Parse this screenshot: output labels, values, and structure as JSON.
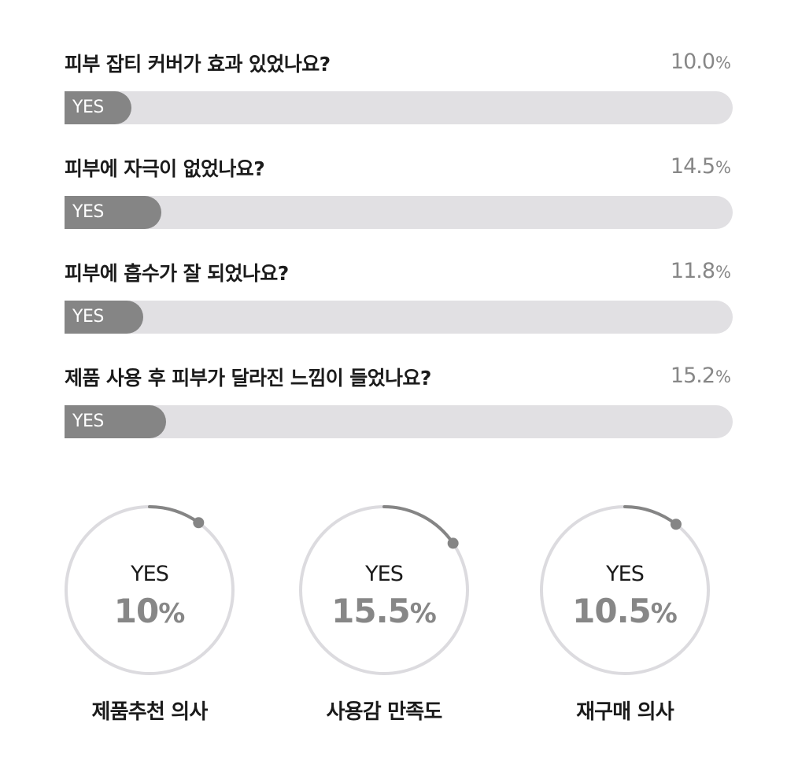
{
  "chart_data": [
    {
      "type": "bar",
      "orientation": "horizontal",
      "categories": [
        "피부 잡티 커버가 효과 있었나요?",
        "피부에 자극이 없었나요?",
        "피부에 흡수가 잘 되었나요?",
        "제품 사용 후 피부가 달라진 느낌이 들었나요?"
      ],
      "values": [
        10.0,
        14.5,
        11.8,
        15.2
      ],
      "value_labels": [
        "10.0",
        "14.5",
        "11.8",
        "15.2"
      ],
      "unit": "%",
      "bar_label": "YES",
      "xlim": [
        0,
        100
      ],
      "colors": {
        "fill": "#858585",
        "track": "#e1e0e3",
        "value_text": "#878787"
      }
    },
    {
      "type": "pie",
      "style": "donut",
      "items": [
        {
          "label": "제품추천 의사",
          "center_label": "YES",
          "value": 10,
          "value_label": "10",
          "unit": "%"
        },
        {
          "label": "사용감 만족도",
          "center_label": "YES",
          "value": 15.5,
          "value_label": "15.5",
          "unit": "%"
        },
        {
          "label": "재구매 의사",
          "center_label": "YES",
          "value": 10.5,
          "value_label": "10.5",
          "unit": "%"
        }
      ],
      "colors": {
        "ring": "#dcdbdf",
        "arc": "#858585",
        "value_text": "#878787"
      }
    }
  ]
}
